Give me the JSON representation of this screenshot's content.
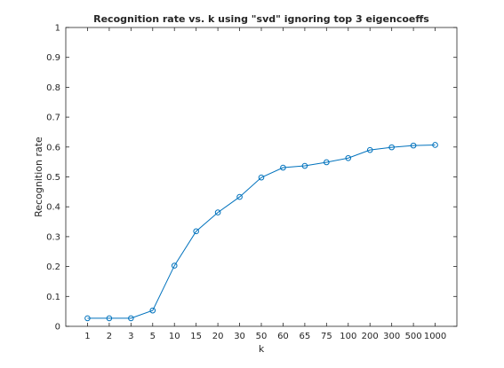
{
  "chart_data": {
    "type": "line",
    "title": "Recognition rate vs. k using \"svd\" ignoring top 3 eigencoeffs",
    "xlabel": "k",
    "ylabel": "Recognition rate",
    "categories": [
      "1",
      "2",
      "3",
      "5",
      "10",
      "15",
      "20",
      "30",
      "50",
      "60",
      "65",
      "75",
      "100",
      "200",
      "300",
      "500",
      "1000"
    ],
    "series": [
      {
        "values": [
          0.027,
          0.027,
          0.027,
          0.053,
          0.203,
          0.318,
          0.381,
          0.433,
          0.498,
          0.531,
          0.537,
          0.549,
          0.563,
          0.59,
          0.599,
          0.605,
          0.607
        ],
        "color": "#0072bd",
        "marker": "circle"
      }
    ],
    "ylim": [
      0,
      1
    ],
    "yticks": [
      "0",
      "0.1",
      "0.2",
      "0.3",
      "0.4",
      "0.5",
      "0.6",
      "0.7",
      "0.8",
      "0.9",
      "1"
    ],
    "grid": false,
    "box": true
  }
}
